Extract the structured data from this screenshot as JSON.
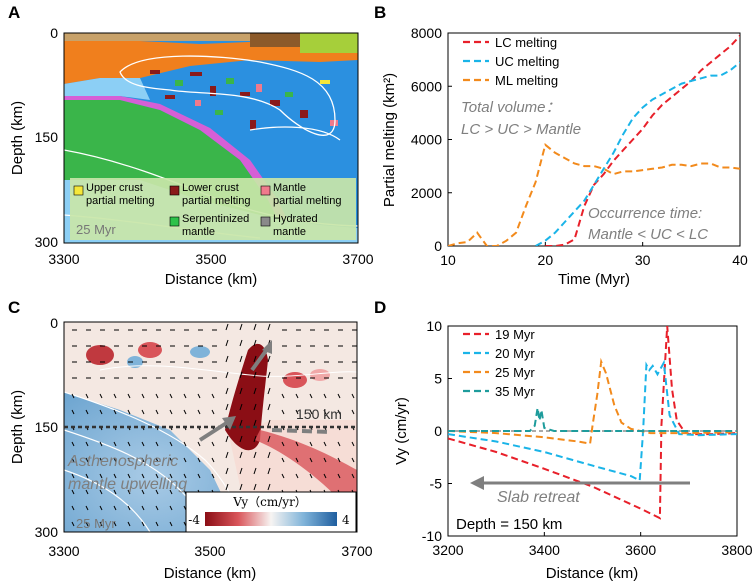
{
  "colors": {
    "lc": "#e8202a",
    "uc": "#1ab4e8",
    "ml": "#f28a1c",
    "d35": "#1e9c9c",
    "orange_layer": "#f07f1d",
    "green_layer": "#3ab54a",
    "blue_mantle": "#2b90e0",
    "light_blue": "#8ccff5",
    "magenta": "#d65fd6",
    "brown": "#8c5a2a",
    "gray_arrow": "#7f7f7f"
  },
  "panel_a": {
    "label": "A",
    "xlabel": "Distance (km)",
    "ylabel": "Depth (km)",
    "xticks": [
      "3300",
      "3500",
      "3700"
    ],
    "yticks": [
      "0",
      "150",
      "300"
    ],
    "time_label": "25 Myr",
    "legend": [
      {
        "text": "Upper crust partial melting",
        "line1": "Upper crust",
        "line2": "partial melting",
        "color": "#f5e73a"
      },
      {
        "text": "Lower crust partial melting",
        "line1": "Lower crust",
        "line2": "partial melting",
        "color": "#8a1a1a"
      },
      {
        "text": "Mantle partial melting",
        "line1": "Mantle",
        "line2": "partial melting",
        "color": "#f07a8c"
      },
      {
        "text": "Serpentinized mantle",
        "line1": "Serpentinized",
        "line2": "mantle",
        "color": "#2ec24a"
      },
      {
        "text": "Hydrated mantle",
        "line1": "Hydrated",
        "line2": "mantle",
        "color": "#8a8a8a"
      }
    ]
  },
  "panel_b": {
    "label": "B",
    "note1_l1": "Total volume：",
    "note1_l2": "LC  >  UC > Mantle",
    "note2_l1": "Occurrence time:",
    "note2_l2": "Mantle  <  UC <  LC"
  },
  "panel_c": {
    "label": "C",
    "xlabel": "Distance (km)",
    "ylabel": "Depth (km)",
    "xticks": [
      "3300",
      "3500",
      "3700"
    ],
    "yticks": [
      "0",
      "150",
      "300"
    ],
    "depth_marker": "150 km",
    "annotation_l1": "Asthenospheric",
    "annotation_l2": "mantle upwelling",
    "time_label": "25 Myr",
    "colorbar_title": "Vy（cm/yr）",
    "colorbar_min": "-4",
    "colorbar_max": "4"
  },
  "panel_d": {
    "label": "D",
    "slab_text": "Slab  retreat",
    "depth_text": "Depth = 150 km"
  },
  "chart_data": [
    {
      "type": "line",
      "panel": "B",
      "title": "",
      "xlabel": "Time (Myr)",
      "ylabel": "Partial melting (km²)",
      "xlim": [
        10,
        40
      ],
      "ylim": [
        0,
        8000
      ],
      "xticks": [
        10,
        20,
        30,
        40
      ],
      "yticks": [
        0,
        2000,
        4000,
        6000,
        8000
      ],
      "legend_position": "top-left",
      "series": [
        {
          "name": "LC melting",
          "color": "#e8202a",
          "dash": true,
          "x": [
            20,
            21,
            22,
            23,
            24,
            25,
            26,
            27,
            28,
            29,
            30,
            31,
            32,
            33,
            34,
            35,
            36,
            37,
            38,
            39,
            40
          ],
          "y": [
            0,
            0,
            50,
            250,
            1500,
            2300,
            2700,
            3200,
            3600,
            4000,
            4400,
            4900,
            5300,
            5600,
            5900,
            6200,
            6600,
            6900,
            7200,
            7500,
            7900
          ]
        },
        {
          "name": "UC melting",
          "color": "#1ab4e8",
          "dash": true,
          "x": [
            19,
            20,
            21,
            22,
            23,
            24,
            25,
            26,
            27,
            28,
            29,
            30,
            31,
            32,
            33,
            34,
            35,
            36,
            37,
            38,
            39,
            40
          ],
          "y": [
            0,
            200,
            500,
            900,
            1300,
            1700,
            2300,
            2900,
            3500,
            4200,
            4800,
            5200,
            5500,
            5700,
            5900,
            6100,
            6200,
            6300,
            6400,
            6400,
            6600,
            6900
          ]
        },
        {
          "name": "ML melting",
          "color": "#f28a1c",
          "dash": true,
          "x": [
            10,
            11,
            12,
            13,
            14,
            15,
            16,
            17,
            18,
            19,
            20,
            21,
            22,
            23,
            24,
            25,
            26,
            27,
            28,
            29,
            30,
            31,
            32,
            33,
            34,
            35,
            36,
            37,
            38,
            39,
            40
          ],
          "y": [
            0,
            100,
            150,
            500,
            0,
            0,
            200,
            500,
            1500,
            2400,
            3800,
            3500,
            3300,
            3100,
            3000,
            3000,
            2900,
            2700,
            2800,
            2800,
            2850,
            2900,
            2950,
            3050,
            3050,
            3000,
            3100,
            3100,
            2950,
            2950,
            2900
          ]
        }
      ]
    },
    {
      "type": "line",
      "panel": "D",
      "title": "",
      "xlabel": "Distance (km)",
      "ylabel": "Vy (cm/yr)",
      "xlim": [
        3200,
        3800
      ],
      "ylim": [
        -10,
        10
      ],
      "xticks": [
        3200,
        3400,
        3600,
        3800
      ],
      "yticks": [
        -10,
        -5,
        0,
        5,
        10
      ],
      "legend_position": "top-left",
      "series": [
        {
          "name": "19 Myr",
          "color": "#e8202a",
          "dash": true,
          "x": [
            3200,
            3300,
            3400,
            3500,
            3600,
            3640,
            3643,
            3655,
            3665,
            3675,
            3690,
            3700,
            3750,
            3800
          ],
          "y": [
            -0.7,
            -2.0,
            -3.6,
            -5.3,
            -7.4,
            -8.3,
            0.5,
            10,
            4,
            1,
            0,
            -0.3,
            -0.3,
            -0.2
          ]
        },
        {
          "name": "20 Myr",
          "color": "#1ab4e8",
          "dash": true,
          "x": [
            3200,
            3300,
            3400,
            3500,
            3580,
            3598,
            3605,
            3612,
            3618,
            3625,
            3635,
            3648,
            3660,
            3680,
            3720,
            3800
          ],
          "y": [
            -0.3,
            -1.0,
            -2.0,
            -3.3,
            -4.3,
            -4.7,
            0,
            6.3,
            5.8,
            6.2,
            5.4,
            6.5,
            1.5,
            -0.3,
            -0.4,
            -0.3
          ]
        },
        {
          "name": "25 Myr",
          "color": "#f28a1c",
          "dash": true,
          "x": [
            3200,
            3300,
            3400,
            3470,
            3495,
            3500,
            3510,
            3518,
            3528,
            3545,
            3560,
            3580,
            3620,
            3700,
            3800
          ],
          "y": [
            0,
            -0.2,
            -0.6,
            -1.0,
            -1.2,
            0.5,
            3.5,
            6.6,
            5.5,
            2.5,
            0.8,
            0.2,
            -0.2,
            -0.2,
            -0.1
          ]
        },
        {
          "name": "35 Myr",
          "color": "#1e9c9c",
          "dash": true,
          "x": [
            3200,
            3300,
            3370,
            3380,
            3386,
            3390,
            3394,
            3400,
            3420,
            3500,
            3600,
            3700,
            3800
          ],
          "y": [
            0,
            0,
            0,
            0.5,
            2.2,
            1.0,
            2.0,
            0.3,
            0,
            0,
            0,
            0,
            0
          ]
        }
      ]
    }
  ]
}
